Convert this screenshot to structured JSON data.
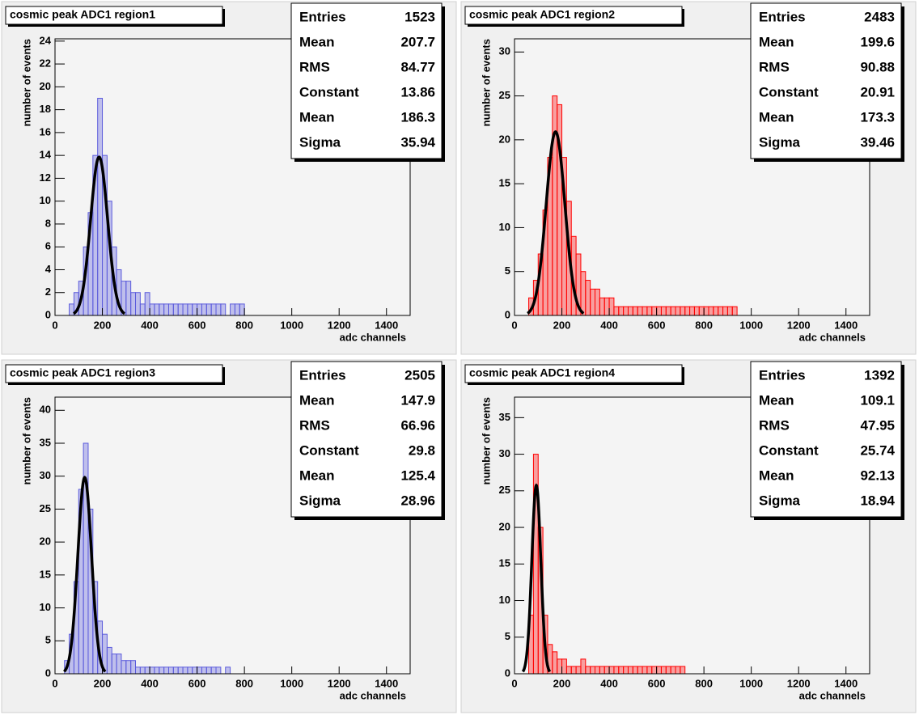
{
  "chart_data": [
    {
      "type": "histogram",
      "title": "cosmic peak ADC1 region1",
      "xlabel": "adc channels",
      "ylabel": "number of events",
      "bins": [
        0,
        20,
        40,
        60,
        80,
        100,
        120,
        140,
        160,
        180,
        200,
        220,
        240,
        260,
        280,
        300,
        320,
        340,
        360,
        380,
        400,
        420,
        440,
        460,
        480,
        500,
        520,
        540,
        560,
        580,
        600,
        620,
        640,
        660,
        680,
        700,
        720,
        740,
        760,
        780,
        800,
        820,
        840,
        860,
        880,
        900,
        920,
        940,
        960,
        980,
        1000
      ],
      "counts": [
        0,
        0,
        0,
        1,
        2,
        3,
        6,
        9,
        14,
        19,
        14,
        10,
        6,
        4,
        3,
        3,
        2,
        2,
        1,
        2,
        1,
        1,
        1,
        1,
        1,
        1,
        1,
        1,
        1,
        1,
        1,
        1,
        1,
        1,
        1,
        1,
        0,
        1,
        1,
        1,
        0,
        0,
        0,
        0,
        0,
        0,
        0,
        0,
        0,
        0
      ],
      "color": "#5c5cdc",
      "fit_color": "#000000",
      "xlim": [
        0,
        1500
      ],
      "xticks": [
        0,
        200,
        400,
        600,
        800,
        1000,
        1200,
        1400
      ],
      "ylim": [
        0,
        24.2
      ],
      "yticks": [
        0,
        2,
        4,
        6,
        8,
        10,
        12,
        14,
        16,
        18,
        20,
        22,
        24
      ],
      "stats": [
        {
          "label": "Entries",
          "value": 1523
        },
        {
          "label": "Mean",
          "value": 207.7
        },
        {
          "label": "RMS",
          "value": 84.77
        },
        {
          "label": "Constant",
          "value": 13.86
        },
        {
          "label": "Mean",
          "value": 186.3
        },
        {
          "label": "Sigma",
          "value": 35.94
        }
      ]
    },
    {
      "type": "histogram",
      "title": "cosmic peak ADC1 region2",
      "xlabel": "adc channels",
      "ylabel": "number of events",
      "bins": [
        0,
        20,
        40,
        60,
        80,
        100,
        120,
        140,
        160,
        180,
        200,
        220,
        240,
        260,
        280,
        300,
        320,
        340,
        360,
        380,
        400,
        420,
        440,
        460,
        480,
        500,
        520,
        540,
        560,
        580,
        600,
        620,
        640,
        660,
        680,
        700,
        720,
        740,
        760,
        780,
        800,
        820,
        840,
        860,
        880,
        900,
        920,
        940,
        960,
        980,
        1000
      ],
      "counts": [
        0,
        0,
        0,
        2,
        4,
        7,
        12,
        18,
        25,
        24,
        18,
        13,
        9,
        7,
        5,
        4,
        3,
        3,
        2,
        2,
        2,
        1,
        1,
        1,
        1,
        1,
        1,
        1,
        1,
        1,
        1,
        1,
        1,
        1,
        1,
        1,
        1,
        1,
        1,
        1,
        1,
        1,
        1,
        1,
        1,
        1,
        1,
        0,
        0,
        0
      ],
      "color": "#ff0000",
      "fit_color": "#000000",
      "xlim": [
        0,
        1500
      ],
      "xticks": [
        0,
        200,
        400,
        600,
        800,
        1000,
        1200,
        1400
      ],
      "ylim": [
        0,
        31.5
      ],
      "yticks": [
        0,
        5,
        10,
        15,
        20,
        25,
        30
      ],
      "stats": [
        {
          "label": "Entries",
          "value": 2483
        },
        {
          "label": "Mean",
          "value": 199.6
        },
        {
          "label": "RMS",
          "value": 90.88
        },
        {
          "label": "Constant",
          "value": 20.91
        },
        {
          "label": "Mean",
          "value": 173.3
        },
        {
          "label": "Sigma",
          "value": 39.46
        }
      ]
    },
    {
      "type": "histogram",
      "title": "cosmic peak ADC1 region3",
      "xlabel": "adc channels",
      "ylabel": "number of events",
      "bins": [
        0,
        20,
        40,
        60,
        80,
        100,
        120,
        140,
        160,
        180,
        200,
        220,
        240,
        260,
        280,
        300,
        320,
        340,
        360,
        380,
        400,
        420,
        440,
        460,
        480,
        500,
        520,
        540,
        560,
        580,
        600,
        620,
        640,
        660,
        680,
        700,
        720,
        740,
        760,
        780,
        800,
        820,
        840,
        860,
        880,
        900,
        920,
        940,
        960,
        980,
        1000
      ],
      "counts": [
        0,
        0,
        2,
        6,
        14,
        28,
        35,
        25,
        14,
        8,
        6,
        4,
        3,
        3,
        2,
        2,
        2,
        1,
        1,
        1,
        1,
        1,
        1,
        1,
        1,
        1,
        1,
        1,
        1,
        1,
        1,
        1,
        1,
        1,
        1,
        0,
        1,
        0,
        0,
        0,
        0,
        0,
        0,
        0,
        0,
        0,
        0,
        0,
        0,
        0
      ],
      "color": "#5c5cdc",
      "fit_color": "#000000",
      "xlim": [
        0,
        1500
      ],
      "xticks": [
        0,
        200,
        400,
        600,
        800,
        1000,
        1200,
        1400
      ],
      "ylim": [
        0,
        42
      ],
      "yticks": [
        0,
        5,
        10,
        15,
        20,
        25,
        30,
        35,
        40
      ],
      "stats": [
        {
          "label": "Entries",
          "value": 2505
        },
        {
          "label": "Mean",
          "value": 147.9
        },
        {
          "label": "RMS",
          "value": 66.96
        },
        {
          "label": "Constant",
          "value": 29.8
        },
        {
          "label": "Mean",
          "value": 125.4
        },
        {
          "label": "Sigma",
          "value": 28.96
        }
      ]
    },
    {
      "type": "histogram",
      "title": "cosmic peak ADC1 region4",
      "xlabel": "adc channels",
      "ylabel": "number of events",
      "bins": [
        0,
        20,
        40,
        60,
        80,
        100,
        120,
        140,
        160,
        180,
        200,
        220,
        240,
        260,
        280,
        300,
        320,
        340,
        360,
        380,
        400,
        420,
        440,
        460,
        480,
        500,
        520,
        540,
        560,
        580,
        600,
        620,
        640,
        660,
        680,
        700,
        720,
        740,
        760,
        780,
        800,
        820,
        840,
        860,
        880,
        900,
        920,
        940,
        960,
        980,
        1000
      ],
      "counts": [
        0,
        0,
        0,
        8,
        30,
        20,
        8,
        4,
        3,
        2,
        2,
        1,
        1,
        1,
        2,
        1,
        1,
        1,
        1,
        1,
        1,
        1,
        1,
        1,
        1,
        1,
        1,
        1,
        1,
        1,
        1,
        1,
        1,
        1,
        1,
        1,
        0,
        0,
        0,
        0,
        0,
        0,
        0,
        0,
        0,
        0,
        0,
        0,
        0,
        0
      ],
      "color": "#ff0000",
      "fit_color": "#000000",
      "xlim": [
        0,
        1500
      ],
      "xticks": [
        0,
        200,
        400,
        600,
        800,
        1000,
        1200,
        1400
      ],
      "ylim": [
        0,
        37.8
      ],
      "yticks": [
        0,
        5,
        10,
        15,
        20,
        25,
        30,
        35
      ],
      "stats": [
        {
          "label": "Entries",
          "value": 1392
        },
        {
          "label": "Mean",
          "value": 109.1
        },
        {
          "label": "RMS",
          "value": 47.95
        },
        {
          "label": "Constant",
          "value": 25.74
        },
        {
          "label": "Mean",
          "value": 92.13
        },
        {
          "label": "Sigma",
          "value": 18.94
        }
      ]
    }
  ]
}
